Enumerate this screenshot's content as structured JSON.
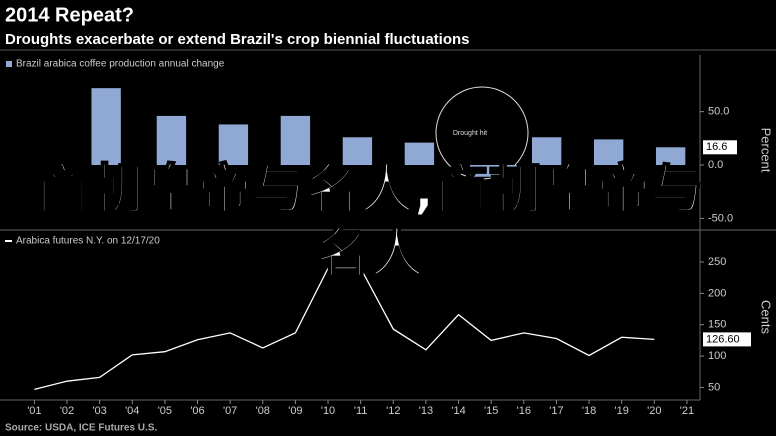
{
  "chart_data": [
    {
      "type": "bar",
      "title": "2014 Repeat?",
      "subtitle": "Droughts exacerbate or extend Brazil's crop biennial fluctuations",
      "y_label": "Percent",
      "annotation": "Drought hit",
      "x": [
        2003.2,
        2005.2,
        2007.1,
        2009.0,
        2010.9,
        2012.8,
        2014.8,
        2015.8,
        2016.7,
        2018.6,
        2020.5
      ],
      "series": [
        {
          "name": "Brazil arabica coffee production annual change",
          "color": "#8fa8d4",
          "values": [
            72,
            46,
            38,
            46,
            26,
            21,
            -11,
            -3,
            26,
            24,
            16.6
          ],
          "value_labels": [
            null,
            null,
            null,
            null,
            null,
            null,
            null,
            null,
            null,
            null,
            "16.6"
          ]
        }
      ],
      "xlim": [
        2000.1,
        2021.4
      ],
      "ylim": [
        -59,
        89
      ],
      "yticks": [
        {
          "value": 50,
          "label": "50.0"
        },
        {
          "value": 0,
          "label": "0.0"
        },
        {
          "value": -50,
          "label": "-50.0"
        }
      ]
    },
    {
      "type": "line",
      "y_label": "Cents",
      "source": "Source: USDA, ICE Futures U.S.",
      "x": [
        2001,
        2002,
        2003,
        2004,
        2005,
        2006,
        2007,
        2008,
        2009,
        2010,
        2011,
        2012,
        2013,
        2014,
        2015,
        2016,
        2017,
        2018,
        2019,
        2020
      ],
      "series": [
        {
          "name": "Arabica futures N.Y. on 12/17/20",
          "color": "#ffffff",
          "values": [
            47,
            60,
            66,
            102,
            107,
            126,
            137,
            113,
            137,
            240,
            240,
            143,
            110,
            166,
            125,
            137,
            128,
            101,
            130,
            126.6
          ],
          "value_labels": [
            null,
            null,
            null,
            null,
            null,
            null,
            null,
            null,
            null,
            null,
            null,
            null,
            null,
            null,
            null,
            null,
            null,
            null,
            null,
            "126.60"
          ]
        }
      ],
      "xlim": [
        2000.1,
        2021.4
      ],
      "ylim": [
        30,
        293
      ],
      "yticks": [
        50,
        100,
        150,
        200,
        250
      ],
      "xticks": [
        {
          "value": 2001,
          "label": "'01"
        },
        {
          "value": 2002,
          "label": "'02"
        },
        {
          "value": 2003,
          "label": "'03"
        },
        {
          "value": 2004,
          "label": "'04"
        },
        {
          "value": 2005,
          "label": "'05"
        },
        {
          "value": 2006,
          "label": "'06"
        },
        {
          "value": 2007,
          "label": "'07"
        },
        {
          "value": 2008,
          "label": "'08"
        },
        {
          "value": 2009,
          "label": "'09"
        },
        {
          "value": 2010,
          "label": "'10"
        },
        {
          "value": 2011,
          "label": "'11"
        },
        {
          "value": 2012,
          "label": "'12"
        },
        {
          "value": 2013,
          "label": "'13"
        },
        {
          "value": 2014,
          "label": "'14"
        },
        {
          "value": 2015,
          "label": "'15"
        },
        {
          "value": 2016,
          "label": "'16"
        },
        {
          "value": 2017,
          "label": "'17"
        },
        {
          "value": 2018,
          "label": "'18"
        },
        {
          "value": 2019,
          "label": "'19"
        },
        {
          "value": 2020,
          "label": "'20"
        },
        {
          "value": 2021,
          "label": "'21"
        }
      ]
    }
  ],
  "overlay_text": "商朝皇帝与名人,商朝皇帝与名人"
}
